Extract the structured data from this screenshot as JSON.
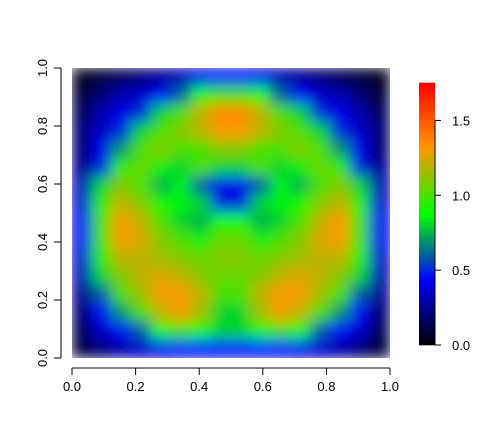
{
  "chart_data": {
    "type": "heatmap",
    "xlim": [
      0,
      1
    ],
    "ylim": [
      0,
      1
    ],
    "xticks": [
      {
        "value": 0,
        "label": "0.0"
      },
      0.2,
      0.4,
      0.6,
      0.8,
      {
        "value": 1,
        "label": "1.0"
      }
    ],
    "yticks": [
      {
        "value": 0,
        "label": "0.0"
      },
      0.2,
      0.4,
      0.6,
      0.8,
      {
        "value": 1,
        "label": "1.0"
      }
    ],
    "zlim": [
      0,
      1.75
    ],
    "zticks": [
      {
        "value": 0,
        "label": "0.0"
      },
      0.5,
      {
        "value": 1,
        "label": "1.0"
      },
      1.5
    ],
    "colors": [
      "#000000",
      "#0000ff",
      "#00ff00",
      "#ff9900",
      "#ff0000"
    ],
    "z": [
      [
        0.05,
        0.1,
        0.15,
        0.2,
        0.25,
        0.3,
        0.4,
        0.45,
        0.45,
        0.4,
        0.3,
        0.25,
        0.2,
        0.15,
        0.1,
        0.05
      ],
      [
        0.1,
        0.2,
        0.3,
        0.35,
        0.45,
        0.6,
        0.9,
        1.0,
        1.0,
        0.9,
        0.6,
        0.45,
        0.35,
        0.3,
        0.2,
        0.1
      ],
      [
        0.15,
        0.3,
        0.4,
        0.5,
        0.8,
        1.0,
        1.2,
        1.35,
        1.35,
        1.2,
        1.0,
        0.8,
        0.5,
        0.4,
        0.3,
        0.15
      ],
      [
        0.2,
        0.35,
        0.5,
        0.8,
        1.0,
        1.1,
        1.2,
        1.3,
        1.3,
        1.2,
        1.1,
        1.0,
        0.8,
        0.5,
        0.35,
        0.2
      ],
      [
        0.2,
        0.4,
        0.7,
        1.0,
        1.1,
        1.0,
        1.0,
        1.1,
        1.1,
        1.0,
        1.0,
        1.1,
        1.0,
        0.7,
        0.4,
        0.2
      ],
      [
        0.25,
        0.5,
        0.95,
        1.05,
        0.85,
        0.8,
        1.0,
        0.8,
        0.8,
        1.0,
        0.8,
        0.85,
        1.05,
        0.95,
        0.5,
        0.25
      ],
      [
        0.3,
        0.8,
        1.1,
        1.0,
        0.75,
        0.85,
        0.6,
        0.4,
        0.4,
        0.6,
        0.85,
        0.75,
        1.0,
        1.1,
        0.8,
        0.3
      ],
      [
        0.35,
        0.95,
        1.2,
        1.1,
        0.9,
        0.85,
        0.8,
        0.5,
        0.5,
        0.8,
        0.85,
        0.9,
        1.1,
        1.2,
        0.95,
        0.35
      ],
      [
        0.4,
        1.0,
        1.3,
        1.2,
        1.0,
        0.8,
        0.75,
        0.9,
        0.9,
        0.75,
        0.8,
        1.0,
        1.2,
        1.3,
        1.0,
        0.4
      ],
      [
        0.4,
        1.0,
        1.3,
        1.25,
        1.1,
        1.0,
        0.85,
        1.05,
        1.05,
        0.85,
        1.0,
        1.1,
        1.25,
        1.3,
        1.0,
        0.4
      ],
      [
        0.35,
        0.95,
        1.2,
        1.2,
        1.15,
        1.1,
        1.05,
        1.1,
        1.1,
        1.05,
        1.1,
        1.15,
        1.2,
        1.2,
        0.95,
        0.35
      ],
      [
        0.3,
        0.8,
        1.1,
        1.2,
        1.25,
        1.2,
        1.1,
        1.05,
        1.05,
        1.1,
        1.2,
        1.25,
        1.2,
        1.1,
        0.8,
        0.3
      ],
      [
        0.25,
        0.6,
        1.0,
        1.15,
        1.3,
        1.3,
        1.2,
        1.0,
        1.0,
        1.2,
        1.3,
        1.3,
        1.15,
        1.0,
        0.6,
        0.25
      ],
      [
        0.2,
        0.45,
        0.7,
        1.0,
        1.2,
        1.3,
        1.15,
        0.8,
        0.8,
        1.15,
        1.3,
        1.2,
        1.0,
        0.7,
        0.45,
        0.2
      ],
      [
        0.15,
        0.35,
        0.45,
        0.6,
        0.9,
        1.0,
        0.9,
        0.8,
        0.8,
        0.9,
        1.0,
        0.9,
        0.6,
        0.45,
        0.35,
        0.15
      ],
      [
        0.1,
        0.2,
        0.3,
        0.35,
        0.4,
        0.45,
        0.45,
        0.45,
        0.45,
        0.45,
        0.45,
        0.4,
        0.35,
        0.3,
        0.2,
        0.1
      ]
    ]
  }
}
